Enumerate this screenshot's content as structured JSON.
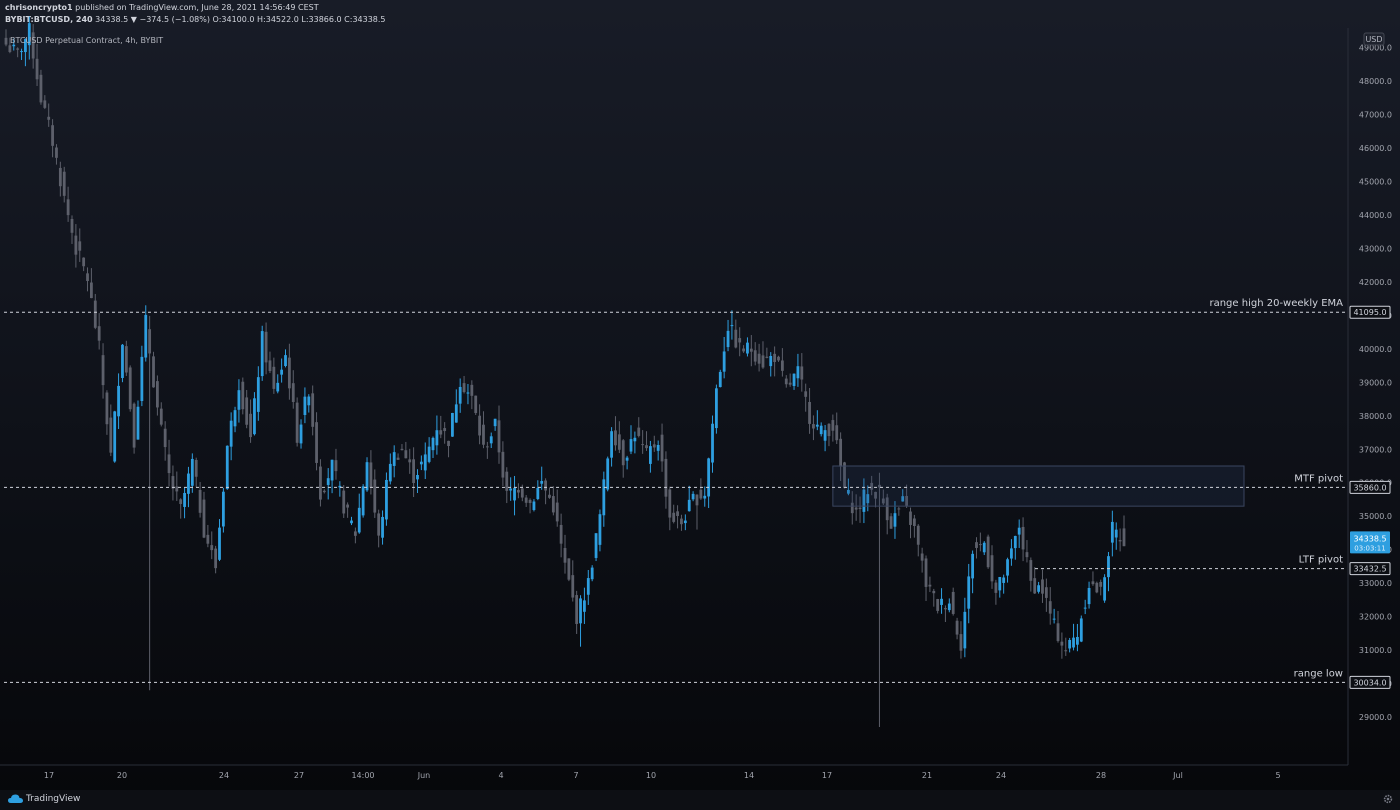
{
  "header": {
    "publisher": "chrisoncrypto1",
    "published_text": "published on TradingView.com, June 28, 2021 14:56:49 CEST",
    "symbol_line": "BYBIT:BTCUSD, 240",
    "last": "34338.5",
    "change": "−374.5 (−1.08%)",
    "open": "O:34100.0",
    "high": "H:34522.0",
    "low": "L:33866.0",
    "close": "C:34338.5"
  },
  "legend_text": "BTCUSD Perpetual Contract, 4h, BYBIT",
  "currency_label": "USD",
  "footer": {
    "brand": "TradingView"
  },
  "colors": {
    "up": "#2e9fe0",
    "down": "#5d606b",
    "line": "#d1d4dc",
    "price_tag": "#2e9fe0"
  },
  "chart_data": {
    "type": "candlestick",
    "title": "BTCUSD Perpetual Contract, 4h, BYBIT",
    "ylim": [
      28000,
      50000
    ],
    "y_ticks": [
      29000,
      30000,
      31000,
      32000,
      33000,
      34000,
      35000,
      36000,
      37000,
      38000,
      39000,
      40000,
      41000,
      42000,
      43000,
      44000,
      45000,
      46000,
      47000,
      48000,
      49000
    ],
    "x_ticks": [
      "17",
      "20",
      "24",
      "27",
      "14:00",
      "Jun",
      "4",
      "7",
      "10",
      "14",
      "17",
      "21",
      "24",
      "28",
      "Jul",
      "5"
    ],
    "grid": false,
    "levels": [
      {
        "label": "range high 20-weekly EMA",
        "value": 41095.0,
        "tag": "41095.0"
      },
      {
        "label": "MTF pivot",
        "value": 35860.0,
        "tag": "35860.0"
      },
      {
        "label": "LTF pivot",
        "value": 33432.5,
        "tag": "33432.5"
      },
      {
        "label": "range low",
        "value": 30034.0,
        "tag": "30034.0"
      }
    ],
    "zone": {
      "low": 35300,
      "high": 36500
    },
    "current_price": {
      "value": 34338.5,
      "tag": "34338.5",
      "countdown": "03:03:11"
    },
    "anchors": [
      [
        0,
        49100
      ],
      [
        3,
        48800
      ],
      [
        6,
        49500
      ],
      [
        9,
        47500
      ],
      [
        12,
        46200
      ],
      [
        15,
        44500
      ],
      [
        18,
        43000
      ],
      [
        21,
        42100
      ],
      [
        24,
        40000
      ],
      [
        27,
        36800
      ],
      [
        30,
        40300
      ],
      [
        33,
        37300
      ],
      [
        36,
        40800
      ],
      [
        39,
        38200
      ],
      [
        42,
        36200
      ],
      [
        45,
        35200
      ],
      [
        48,
        36600
      ],
      [
        51,
        34600
      ],
      [
        54,
        33500
      ],
      [
        57,
        37100
      ],
      [
        60,
        39000
      ],
      [
        63,
        37300
      ],
      [
        66,
        40300
      ],
      [
        69,
        38700
      ],
      [
        72,
        39800
      ],
      [
        75,
        37400
      ],
      [
        78,
        38800
      ],
      [
        81,
        35700
      ],
      [
        84,
        36500
      ],
      [
        87,
        35300
      ],
      [
        90,
        34500
      ],
      [
        93,
        36700
      ],
      [
        96,
        34300
      ],
      [
        99,
        36700
      ],
      [
        102,
        37000
      ],
      [
        105,
        36200
      ],
      [
        108,
        36700
      ],
      [
        111,
        37700
      ],
      [
        114,
        37300
      ],
      [
        117,
        39100
      ],
      [
        120,
        38500
      ],
      [
        123,
        37000
      ],
      [
        126,
        37700
      ],
      [
        129,
        35600
      ],
      [
        132,
        35900
      ],
      [
        135,
        35400
      ],
      [
        138,
        36000
      ],
      [
        141,
        35300
      ],
      [
        144,
        33500
      ],
      [
        147,
        32000
      ],
      [
        150,
        33000
      ],
      [
        153,
        35000
      ],
      [
        156,
        37700
      ],
      [
        159,
        36700
      ],
      [
        162,
        37500
      ],
      [
        165,
        36800
      ],
      [
        168,
        37300
      ],
      [
        171,
        35000
      ],
      [
        174,
        34800
      ],
      [
        177,
        35500
      ],
      [
        180,
        35700
      ],
      [
        183,
        38800
      ],
      [
        186,
        40700
      ],
      [
        189,
        40000
      ],
      [
        192,
        40000
      ],
      [
        195,
        39600
      ],
      [
        198,
        39800
      ],
      [
        201,
        38800
      ],
      [
        204,
        39300
      ],
      [
        207,
        38000
      ],
      [
        210,
        37500
      ],
      [
        213,
        37700
      ],
      [
        216,
        35800
      ],
      [
        219,
        35100
      ],
      [
        222,
        35800
      ],
      [
        225,
        35700
      ],
      [
        228,
        34800
      ],
      [
        231,
        35400
      ],
      [
        234,
        34600
      ],
      [
        237,
        33000
      ],
      [
        240,
        32300
      ],
      [
        243,
        32500
      ],
      [
        246,
        31200
      ],
      [
        249,
        34000
      ],
      [
        252,
        34200
      ],
      [
        255,
        32700
      ],
      [
        258,
        33500
      ],
      [
        261,
        34700
      ],
      [
        264,
        33000
      ],
      [
        267,
        32800
      ],
      [
        270,
        31700
      ],
      [
        273,
        31000
      ],
      [
        276,
        31500
      ],
      [
        279,
        33000
      ],
      [
        282,
        32700
      ],
      [
        285,
        34600
      ],
      [
        288,
        34300
      ]
    ]
  }
}
